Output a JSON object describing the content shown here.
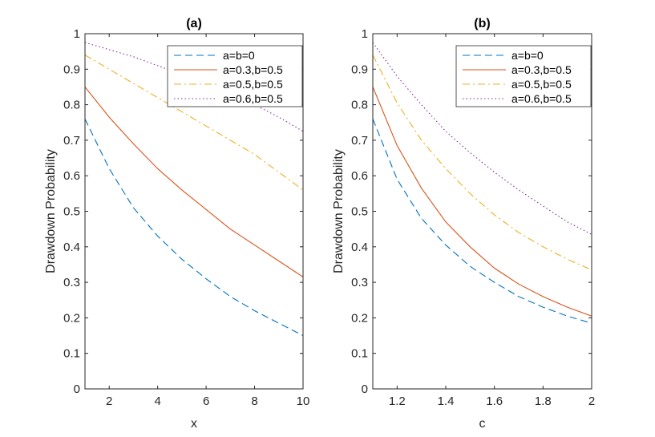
{
  "chart_data": [
    {
      "type": "line",
      "title": "(a)",
      "xlabel": "x",
      "ylabel": "Drawdown Probability",
      "xlim": [
        1,
        10
      ],
      "ylim": [
        0,
        1
      ],
      "xticks": [
        2,
        4,
        6,
        8,
        10
      ],
      "xtick_labels": [
        "2",
        "4",
        "6",
        "8",
        "10"
      ],
      "yticks": [
        0,
        0.1,
        0.2,
        0.3,
        0.4,
        0.5,
        0.6,
        0.7,
        0.8,
        0.9,
        1
      ],
      "ytick_labels": [
        "0",
        "0.1",
        "0.2",
        "0.3",
        "0.4",
        "0.5",
        "0.6",
        "0.7",
        "0.8",
        "0.9",
        "1"
      ],
      "legend_position": "top-right",
      "x": [
        1,
        2,
        3,
        4,
        5,
        6,
        7,
        8,
        9,
        10
      ],
      "series": [
        {
          "name": "a=b=0",
          "style": "dashed",
          "color": "#0072BD",
          "values": [
            0.76,
            0.62,
            0.51,
            0.43,
            0.365,
            0.31,
            0.26,
            0.22,
            0.185,
            0.15
          ]
        },
        {
          "name": "a=0.3,b=0.5",
          "style": "solid",
          "color": "#D95319",
          "values": [
            0.85,
            0.765,
            0.69,
            0.62,
            0.56,
            0.505,
            0.45,
            0.405,
            0.36,
            0.315
          ]
        },
        {
          "name": "a=0.5,b=0.5",
          "style": "dashdot",
          "color": "#EDB120",
          "values": [
            0.94,
            0.9,
            0.86,
            0.82,
            0.78,
            0.74,
            0.7,
            0.66,
            0.61,
            0.56
          ]
        },
        {
          "name": "a=0.6,b=0.5",
          "style": "dotted",
          "color": "#7E2F8E",
          "values": [
            0.975,
            0.955,
            0.935,
            0.91,
            0.885,
            0.86,
            0.83,
            0.8,
            0.765,
            0.725
          ]
        }
      ]
    },
    {
      "type": "line",
      "title": "(b)",
      "xlabel": "c",
      "ylabel": "Drawdown Probability",
      "xlim": [
        1.1,
        2
      ],
      "ylim": [
        0,
        1
      ],
      "xticks": [
        1.2,
        1.4,
        1.6,
        1.8,
        2
      ],
      "xtick_labels": [
        "1.2",
        "1.4",
        "1.6",
        "1.8",
        "2"
      ],
      "yticks": [
        0,
        0.1,
        0.2,
        0.3,
        0.4,
        0.5,
        0.6,
        0.7,
        0.8,
        0.9,
        1
      ],
      "ytick_labels": [
        "0",
        "0.1",
        "0.2",
        "0.3",
        "0.4",
        "0.5",
        "0.6",
        "0.7",
        "0.8",
        "0.9",
        "1"
      ],
      "legend_position": "top-right",
      "x": [
        1.1,
        1.2,
        1.3,
        1.4,
        1.5,
        1.6,
        1.7,
        1.8,
        1.9,
        2.0
      ],
      "series": [
        {
          "name": "a=b=0",
          "style": "dashed",
          "color": "#0072BD",
          "values": [
            0.76,
            0.59,
            0.48,
            0.405,
            0.345,
            0.3,
            0.26,
            0.23,
            0.205,
            0.185
          ]
        },
        {
          "name": "a=0.3,b=0.5",
          "style": "solid",
          "color": "#D95319",
          "values": [
            0.85,
            0.685,
            0.565,
            0.47,
            0.4,
            0.34,
            0.295,
            0.26,
            0.23,
            0.205
          ]
        },
        {
          "name": "a=0.5,b=0.5",
          "style": "dashdot",
          "color": "#EDB120",
          "values": [
            0.94,
            0.805,
            0.7,
            0.62,
            0.55,
            0.49,
            0.44,
            0.4,
            0.365,
            0.335
          ]
        },
        {
          "name": "a=0.6,b=0.5",
          "style": "dotted",
          "color": "#7E2F8E",
          "values": [
            0.975,
            0.88,
            0.8,
            0.725,
            0.665,
            0.61,
            0.56,
            0.515,
            0.47,
            0.435
          ]
        }
      ]
    }
  ]
}
